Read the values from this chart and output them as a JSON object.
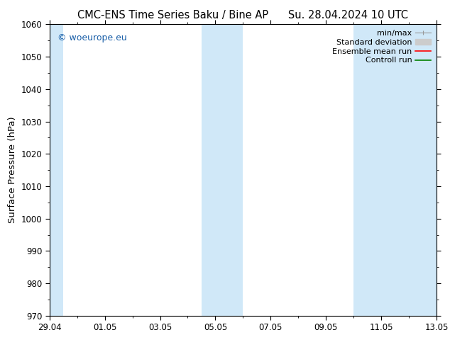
{
  "title_left": "CMC-ENS Time Series Baku / Bine AP",
  "title_right": "Su. 28.04.2024 10 UTC",
  "ylabel": "Surface Pressure (hPa)",
  "ylim": [
    970,
    1060
  ],
  "yticks": [
    970,
    980,
    990,
    1000,
    1010,
    1020,
    1030,
    1040,
    1050,
    1060
  ],
  "xtick_labels": [
    "29.04",
    "01.05",
    "03.05",
    "05.05",
    "07.05",
    "09.05",
    "11.05",
    "13.05"
  ],
  "xtick_positions": [
    0,
    2,
    4,
    6,
    8,
    10,
    12,
    14
  ],
  "xlim": [
    0,
    14
  ],
  "shaded_bands": [
    {
      "xmin": 0,
      "xmax": 0.5,
      "color": "#d0e8f8"
    },
    {
      "xmin": 5.5,
      "xmax": 7.0,
      "color": "#d0e8f8"
    },
    {
      "xmin": 11.0,
      "xmax": 14.0,
      "color": "#d0e8f8"
    }
  ],
  "background_color": "#ffffff",
  "plot_bg_color": "#ffffff",
  "watermark_text": "© woeurope.eu",
  "watermark_color": "#1a5fa8",
  "legend_labels": [
    "min/max",
    "Standard deviation",
    "Ensemble mean run",
    "Controll run"
  ],
  "legend_colors": [
    "#999999",
    "#cccccc",
    "#ff0000",
    "#008000"
  ],
  "title_fontsize": 10.5,
  "tick_fontsize": 8.5,
  "ylabel_fontsize": 9.5,
  "legend_fontsize": 8,
  "watermark_fontsize": 9
}
